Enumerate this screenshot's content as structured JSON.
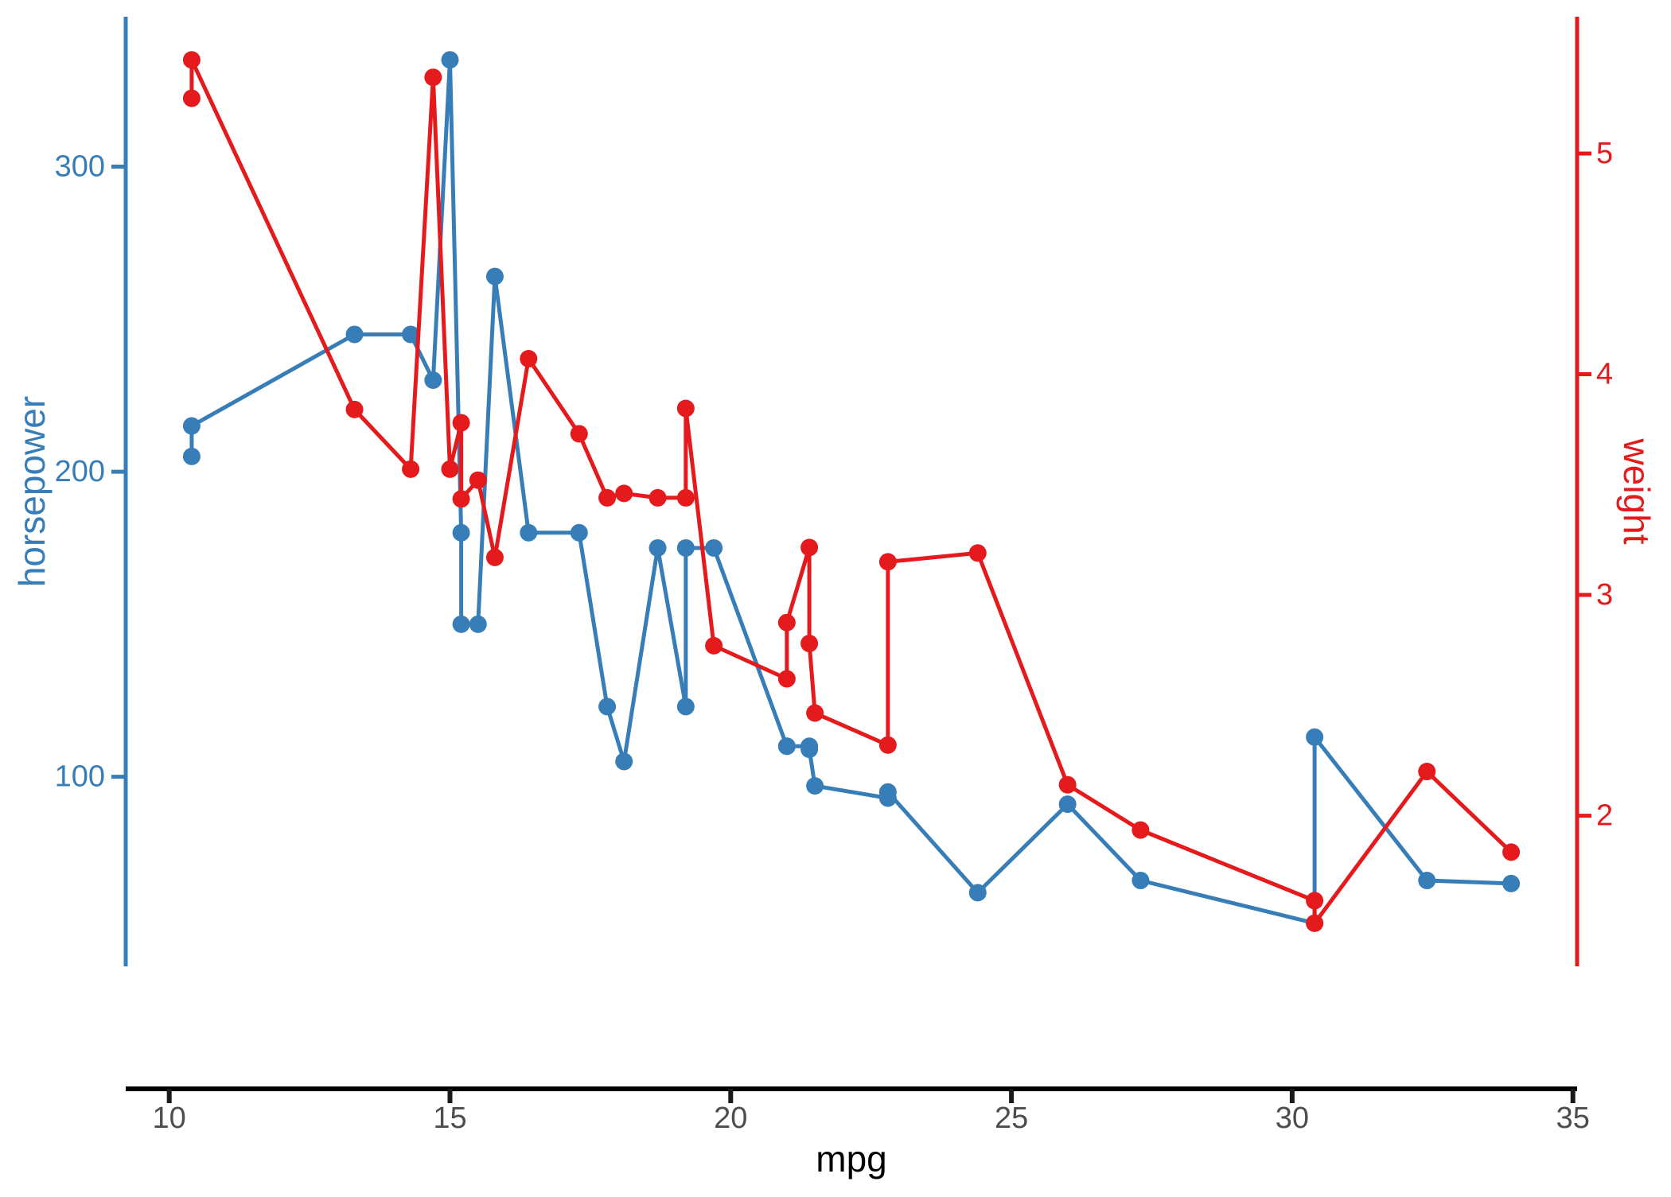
{
  "chart_data": {
    "type": "line",
    "title": "",
    "xlabel": "mpg",
    "ylabel": "horsepower",
    "ylabel_right": "weight",
    "grid": false,
    "legend": false,
    "expansion": 0.05,
    "marker": "circle",
    "colors": {
      "horsepower": "#377EB8",
      "weight": "#E41A1C",
      "x_axis_line": "#000000",
      "x_tick_marks": "#1A1A1A",
      "x_tick_labels": "#4D4D4D",
      "x_title": "#000000",
      "background": "#FFFFFF"
    },
    "axes": {
      "left": {
        "title": "horsepower",
        "ticks": [
          100,
          200,
          300
        ],
        "color": "#377EB8"
      },
      "right": {
        "title": "weight",
        "ticks": [
          2,
          3,
          4,
          5
        ],
        "color": "#E41A1C"
      },
      "bottom": {
        "title": "mpg",
        "ticks": [
          10,
          15,
          20,
          25,
          30,
          35
        ]
      }
    },
    "x": [
      10.4,
      10.4,
      13.3,
      14.3,
      14.7,
      15.0,
      15.2,
      15.2,
      15.5,
      15.8,
      16.4,
      17.3,
      17.8,
      18.1,
      18.7,
      19.2,
      19.2,
      19.7,
      21.0,
      21.0,
      21.4,
      21.4,
      21.5,
      22.8,
      22.8,
      24.4,
      26.0,
      27.3,
      30.4,
      30.4,
      32.4,
      33.9
    ],
    "series": [
      {
        "name": "horsepower",
        "axis": "left",
        "color": "#377EB8",
        "values": [
          205,
          215,
          245,
          245,
          230,
          335,
          180,
          150,
          150,
          264,
          180,
          180,
          123,
          105,
          175,
          123,
          175,
          175,
          110,
          110,
          110,
          109,
          97,
          93,
          95,
          62,
          91,
          66,
          52,
          113,
          66,
          65
        ]
      },
      {
        "name": "weight",
        "axis": "right",
        "color": "#E41A1C",
        "values": [
          5.25,
          5.424,
          3.84,
          3.57,
          5.345,
          3.57,
          3.78,
          3.435,
          3.52,
          3.17,
          4.07,
          3.73,
          3.44,
          3.46,
          3.44,
          3.44,
          3.845,
          2.77,
          2.62,
          2.875,
          3.215,
          2.78,
          2.465,
          2.32,
          3.15,
          3.19,
          2.14,
          1.935,
          1.615,
          1.513,
          2.2,
          1.835
        ]
      }
    ]
  }
}
